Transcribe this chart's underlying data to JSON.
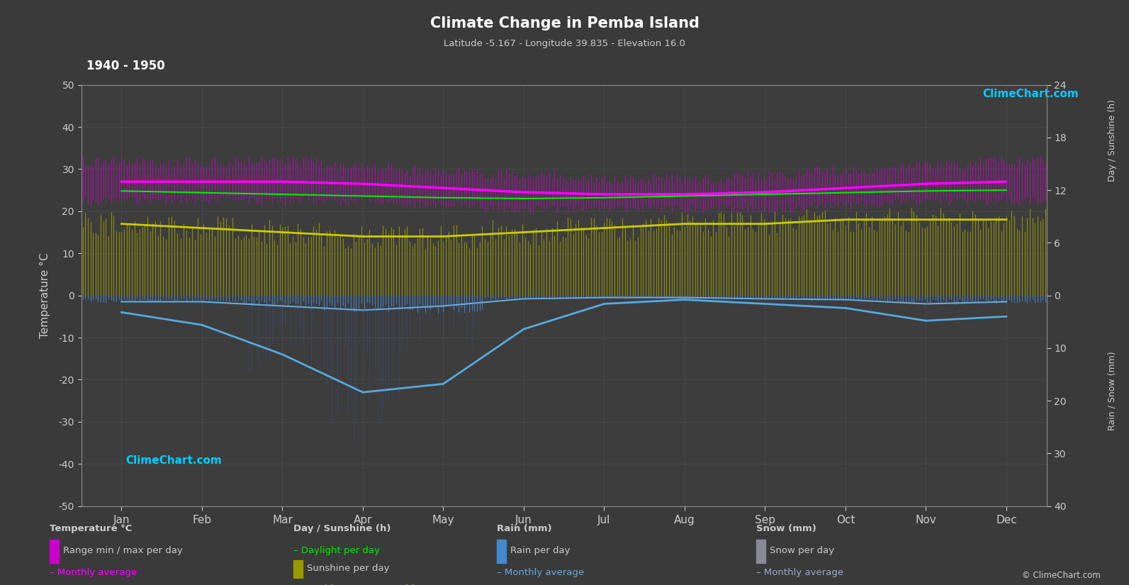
{
  "title": "Climate Change in Pemba Island",
  "subtitle": "Latitude -5.167 - Longitude 39.835 - Elevation 16.0",
  "year_range": "1940 - 1950",
  "background_color": "#3a3a3a",
  "plot_bg_color": "#3d3d3d",
  "text_color": "#cccccc",
  "grid_color": "#555555",
  "months": [
    "Jan",
    "Feb",
    "Mar",
    "Apr",
    "May",
    "Jun",
    "Jul",
    "Aug",
    "Sep",
    "Oct",
    "Nov",
    "Dec"
  ],
  "ylim_left": [
    -50,
    50
  ],
  "temp_max_per_day": [
    31,
    31,
    31,
    30,
    29,
    28,
    27,
    27,
    28,
    29,
    30,
    31
  ],
  "temp_min_per_day": [
    23,
    23,
    23,
    23,
    22,
    21,
    21,
    21,
    21,
    22,
    23,
    23
  ],
  "temp_monthly_avg": [
    27,
    27,
    27,
    26.5,
    25.5,
    24.5,
    24,
    24,
    24.5,
    25.5,
    26.5,
    27
  ],
  "daylight_per_day": [
    12.4,
    12.2,
    12.0,
    11.8,
    11.6,
    11.5,
    11.6,
    11.8,
    12.0,
    12.2,
    12.4,
    12.5
  ],
  "sunshine_per_day": [
    8.5,
    8.0,
    7.5,
    7.0,
    7.0,
    7.5,
    8.0,
    8.5,
    8.5,
    9.0,
    9.0,
    9.0
  ],
  "sunshine_monthly_avg": [
    8.5,
    8.0,
    7.5,
    7.0,
    7.0,
    7.5,
    8.0,
    8.5,
    8.5,
    9.0,
    9.0,
    9.0
  ],
  "rain_per_day_mm": [
    8,
    7,
    12,
    18,
    20,
    5,
    3,
    3,
    4,
    6,
    10,
    9
  ],
  "rain_monthly_avg_temp": [
    -1.5,
    -1.5,
    -2.5,
    -3.5,
    -2.5,
    -0.8,
    -0.5,
    -0.5,
    -0.8,
    -1.0,
    -2.0,
    -1.5
  ],
  "snow_monthly_avg_temp": [
    -4,
    -7,
    -14,
    -23,
    -21,
    -8,
    -2,
    -1,
    -2,
    -3,
    -6,
    -5
  ],
  "logo_color_cyan": "#00cfff",
  "logo_color_magenta": "#dd00ff",
  "temp_range_color": "#cc00cc",
  "temp_avg_color": "#ff00ff",
  "daylight_color": "#00ee00",
  "sunshine_fill_color": "#999900",
  "sunshine_avg_color": "#cccc00",
  "rain_fill_color": "#4488cc",
  "rain_avg_color": "#66aadd",
  "snow_fill_color": "#888899",
  "snow_avg_color": "#99aacc"
}
